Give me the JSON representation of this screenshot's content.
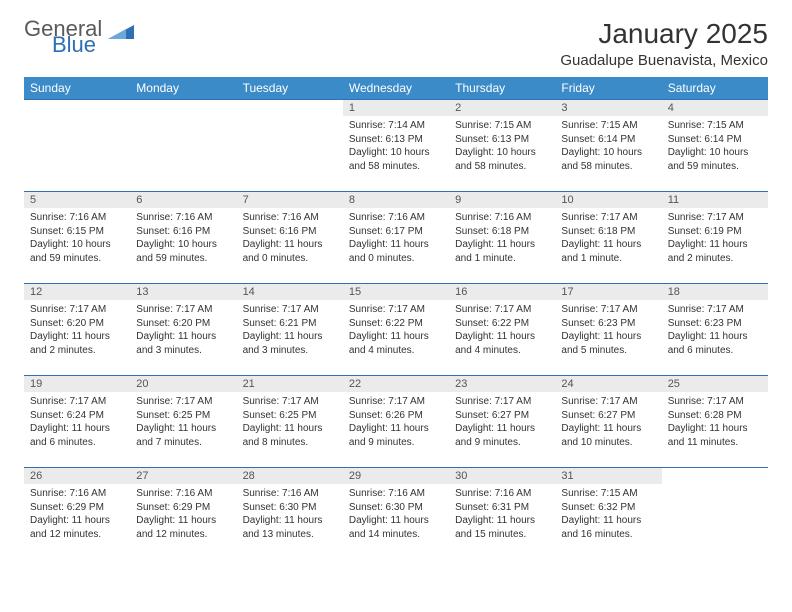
{
  "brand": {
    "line1": "General",
    "line2": "Blue",
    "icon_color": "#2e6fb5"
  },
  "title": "January 2025",
  "location": "Guadalupe Buenavista, Mexico",
  "colors": {
    "header_bg": "#3b8bc9",
    "header_text": "#ffffff",
    "border": "#2e6fb5",
    "daynum_bg": "#ebebeb",
    "text": "#333333",
    "page_bg": "#ffffff"
  },
  "day_headers": [
    "Sunday",
    "Monday",
    "Tuesday",
    "Wednesday",
    "Thursday",
    "Friday",
    "Saturday"
  ],
  "weeks": [
    [
      {
        "n": "",
        "empty": true
      },
      {
        "n": "",
        "empty": true
      },
      {
        "n": "",
        "empty": true
      },
      {
        "n": "1",
        "sunrise": "Sunrise: 7:14 AM",
        "sunset": "Sunset: 6:13 PM",
        "daylight": "Daylight: 10 hours and 58 minutes."
      },
      {
        "n": "2",
        "sunrise": "Sunrise: 7:15 AM",
        "sunset": "Sunset: 6:13 PM",
        "daylight": "Daylight: 10 hours and 58 minutes."
      },
      {
        "n": "3",
        "sunrise": "Sunrise: 7:15 AM",
        "sunset": "Sunset: 6:14 PM",
        "daylight": "Daylight: 10 hours and 58 minutes."
      },
      {
        "n": "4",
        "sunrise": "Sunrise: 7:15 AM",
        "sunset": "Sunset: 6:14 PM",
        "daylight": "Daylight: 10 hours and 59 minutes."
      }
    ],
    [
      {
        "n": "5",
        "sunrise": "Sunrise: 7:16 AM",
        "sunset": "Sunset: 6:15 PM",
        "daylight": "Daylight: 10 hours and 59 minutes."
      },
      {
        "n": "6",
        "sunrise": "Sunrise: 7:16 AM",
        "sunset": "Sunset: 6:16 PM",
        "daylight": "Daylight: 10 hours and 59 minutes."
      },
      {
        "n": "7",
        "sunrise": "Sunrise: 7:16 AM",
        "sunset": "Sunset: 6:16 PM",
        "daylight": "Daylight: 11 hours and 0 minutes."
      },
      {
        "n": "8",
        "sunrise": "Sunrise: 7:16 AM",
        "sunset": "Sunset: 6:17 PM",
        "daylight": "Daylight: 11 hours and 0 minutes."
      },
      {
        "n": "9",
        "sunrise": "Sunrise: 7:16 AM",
        "sunset": "Sunset: 6:18 PM",
        "daylight": "Daylight: 11 hours and 1 minute."
      },
      {
        "n": "10",
        "sunrise": "Sunrise: 7:17 AM",
        "sunset": "Sunset: 6:18 PM",
        "daylight": "Daylight: 11 hours and 1 minute."
      },
      {
        "n": "11",
        "sunrise": "Sunrise: 7:17 AM",
        "sunset": "Sunset: 6:19 PM",
        "daylight": "Daylight: 11 hours and 2 minutes."
      }
    ],
    [
      {
        "n": "12",
        "sunrise": "Sunrise: 7:17 AM",
        "sunset": "Sunset: 6:20 PM",
        "daylight": "Daylight: 11 hours and 2 minutes."
      },
      {
        "n": "13",
        "sunrise": "Sunrise: 7:17 AM",
        "sunset": "Sunset: 6:20 PM",
        "daylight": "Daylight: 11 hours and 3 minutes."
      },
      {
        "n": "14",
        "sunrise": "Sunrise: 7:17 AM",
        "sunset": "Sunset: 6:21 PM",
        "daylight": "Daylight: 11 hours and 3 minutes."
      },
      {
        "n": "15",
        "sunrise": "Sunrise: 7:17 AM",
        "sunset": "Sunset: 6:22 PM",
        "daylight": "Daylight: 11 hours and 4 minutes."
      },
      {
        "n": "16",
        "sunrise": "Sunrise: 7:17 AM",
        "sunset": "Sunset: 6:22 PM",
        "daylight": "Daylight: 11 hours and 4 minutes."
      },
      {
        "n": "17",
        "sunrise": "Sunrise: 7:17 AM",
        "sunset": "Sunset: 6:23 PM",
        "daylight": "Daylight: 11 hours and 5 minutes."
      },
      {
        "n": "18",
        "sunrise": "Sunrise: 7:17 AM",
        "sunset": "Sunset: 6:23 PM",
        "daylight": "Daylight: 11 hours and 6 minutes."
      }
    ],
    [
      {
        "n": "19",
        "sunrise": "Sunrise: 7:17 AM",
        "sunset": "Sunset: 6:24 PM",
        "daylight": "Daylight: 11 hours and 6 minutes."
      },
      {
        "n": "20",
        "sunrise": "Sunrise: 7:17 AM",
        "sunset": "Sunset: 6:25 PM",
        "daylight": "Daylight: 11 hours and 7 minutes."
      },
      {
        "n": "21",
        "sunrise": "Sunrise: 7:17 AM",
        "sunset": "Sunset: 6:25 PM",
        "daylight": "Daylight: 11 hours and 8 minutes."
      },
      {
        "n": "22",
        "sunrise": "Sunrise: 7:17 AM",
        "sunset": "Sunset: 6:26 PM",
        "daylight": "Daylight: 11 hours and 9 minutes."
      },
      {
        "n": "23",
        "sunrise": "Sunrise: 7:17 AM",
        "sunset": "Sunset: 6:27 PM",
        "daylight": "Daylight: 11 hours and 9 minutes."
      },
      {
        "n": "24",
        "sunrise": "Sunrise: 7:17 AM",
        "sunset": "Sunset: 6:27 PM",
        "daylight": "Daylight: 11 hours and 10 minutes."
      },
      {
        "n": "25",
        "sunrise": "Sunrise: 7:17 AM",
        "sunset": "Sunset: 6:28 PM",
        "daylight": "Daylight: 11 hours and 11 minutes."
      }
    ],
    [
      {
        "n": "26",
        "sunrise": "Sunrise: 7:16 AM",
        "sunset": "Sunset: 6:29 PM",
        "daylight": "Daylight: 11 hours and 12 minutes."
      },
      {
        "n": "27",
        "sunrise": "Sunrise: 7:16 AM",
        "sunset": "Sunset: 6:29 PM",
        "daylight": "Daylight: 11 hours and 12 minutes."
      },
      {
        "n": "28",
        "sunrise": "Sunrise: 7:16 AM",
        "sunset": "Sunset: 6:30 PM",
        "daylight": "Daylight: 11 hours and 13 minutes."
      },
      {
        "n": "29",
        "sunrise": "Sunrise: 7:16 AM",
        "sunset": "Sunset: 6:30 PM",
        "daylight": "Daylight: 11 hours and 14 minutes."
      },
      {
        "n": "30",
        "sunrise": "Sunrise: 7:16 AM",
        "sunset": "Sunset: 6:31 PM",
        "daylight": "Daylight: 11 hours and 15 minutes."
      },
      {
        "n": "31",
        "sunrise": "Sunrise: 7:15 AM",
        "sunset": "Sunset: 6:32 PM",
        "daylight": "Daylight: 11 hours and 16 minutes."
      },
      {
        "n": "",
        "empty": true
      }
    ]
  ]
}
